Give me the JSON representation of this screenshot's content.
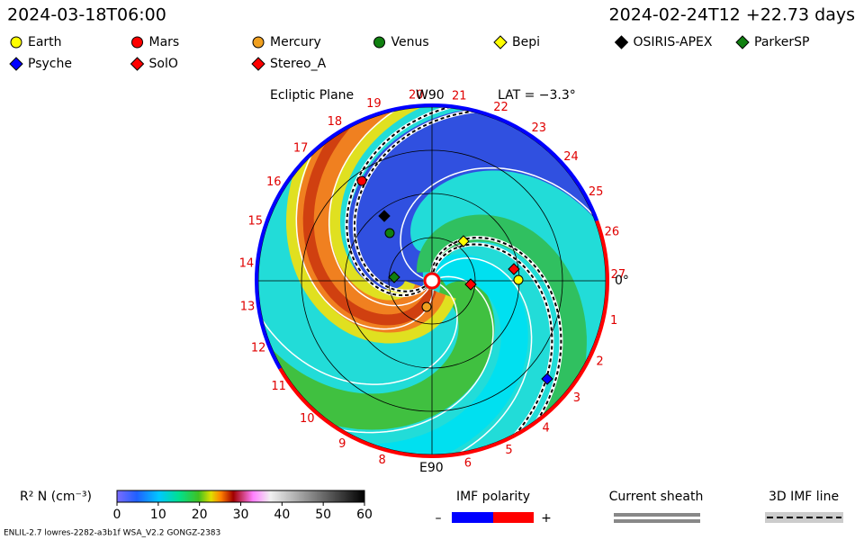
{
  "header": {
    "left": "2024-03-18T06:00",
    "right": "2024-02-24T12 +22.73 days"
  },
  "legend": [
    {
      "name": "Earth",
      "color": "#ffff00",
      "shape": "circle"
    },
    {
      "name": "Mars",
      "color": "#ff0000",
      "shape": "circle"
    },
    {
      "name": "Mercury",
      "color": "#f0a020",
      "shape": "circle"
    },
    {
      "name": "Venus",
      "color": "#108010",
      "shape": "circle"
    },
    {
      "name": "Bepi",
      "color": "#ffff00",
      "shape": "diamond"
    },
    {
      "name": "OSIRIS-APEX",
      "color": "#000000",
      "shape": "diamond"
    },
    {
      "name": "ParkerSP",
      "color": "#108010",
      "shape": "diamond"
    },
    {
      "name": "Psyche",
      "color": "#0000ff",
      "shape": "diamond"
    },
    {
      "name": "SolO",
      "color": "#ff0000",
      "shape": "diamond"
    },
    {
      "name": "Stereo_A",
      "color": "#ff0000",
      "shape": "diamond"
    }
  ],
  "plot": {
    "title": "Ecliptic Plane",
    "top_label": "W90",
    "lat_label": "LAT = −3.3°",
    "right_label": "0°",
    "bottom_label": "E90",
    "rim_labels": [
      "1",
      "2",
      "3",
      "4",
      "5",
      "6",
      null,
      "8",
      "9",
      "10",
      "11",
      "12",
      "13",
      "14",
      "15",
      "16",
      "17",
      "18",
      "19",
      "20",
      "21",
      "22",
      "23",
      "24",
      "25",
      "26",
      "27"
    ]
  },
  "colorbar": {
    "label": "R² N (cm⁻³)",
    "lim": [
      0,
      60
    ],
    "ticks": [
      0,
      10,
      20,
      30,
      40,
      50,
      60
    ]
  },
  "imf_polarity": {
    "title": "IMF polarity",
    "minus": "–",
    "plus": "+"
  },
  "current_sheath": "Current sheath",
  "imf_line": "3D IMF line",
  "footer": "ENLIL-2.7 lowres-2282-a3b1f WSA_V2.2 GONGZ-2383"
}
